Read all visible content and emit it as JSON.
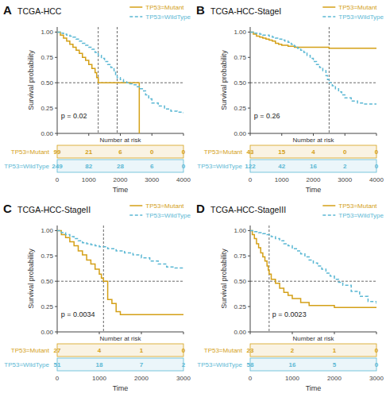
{
  "chart_data": [
    {
      "type": "step",
      "title": "TCGA-HCC",
      "annotations": [
        "A",
        "p = 0.02"
      ],
      "x_label": "Time",
      "y_label": "Survival probability",
      "xlim": [
        0,
        4000
      ],
      "xticks": [
        0,
        1000,
        2000,
        3000,
        4000
      ],
      "ylim": [
        0,
        1.05
      ],
      "yticks": [
        {
          "value": 0,
          "label": "0.00"
        },
        0.25,
        {
          "value": 0.5,
          "label": "0.50"
        },
        0.75,
        {
          "value": 1,
          "label": "1.00"
        }
      ],
      "tick_labels": "y",
      "grid": false,
      "legend": "upper right",
      "hlines": [
        0.5
      ],
      "vlines": [
        1300,
        1900
      ],
      "series": [
        {
          "name": "TP53=Mutant",
          "color": "#D4A017",
          "line_style": "solid",
          "x": [
            0,
            100,
            200,
            300,
            400,
            500,
            600,
            700,
            800,
            900,
            1000,
            1100,
            1200,
            1250,
            1300,
            1400,
            1500,
            1600,
            1700,
            1800,
            1900,
            2000,
            2100,
            2200,
            2300,
            2400,
            2500,
            2550,
            2600
          ],
          "values": [
            1.0,
            0.97,
            0.94,
            0.91,
            0.88,
            0.85,
            0.82,
            0.79,
            0.75,
            0.72,
            0.68,
            0.64,
            0.6,
            0.55,
            0.5,
            0.5,
            0.5,
            0.5,
            0.5,
            0.5,
            0.5,
            0.5,
            0.5,
            0.5,
            0.5,
            0.5,
            0.5,
            0.5,
            0.0
          ]
        },
        {
          "name": "TP53=WildType",
          "color": "#5BB8D4",
          "line_style": "dashed",
          "x": [
            0,
            100,
            200,
            300,
            400,
            500,
            600,
            700,
            800,
            900,
            1000,
            1100,
            1200,
            1300,
            1400,
            1500,
            1600,
            1700,
            1800,
            1850,
            1900,
            2000,
            2100,
            2200,
            2300,
            2400,
            2500,
            2600,
            2700,
            2800,
            2900,
            3000,
            3200,
            3400,
            3600,
            3800,
            4000
          ],
          "values": [
            1.0,
            0.99,
            0.98,
            0.97,
            0.96,
            0.95,
            0.93,
            0.91,
            0.89,
            0.87,
            0.85,
            0.83,
            0.8,
            0.77,
            0.74,
            0.71,
            0.68,
            0.65,
            0.62,
            0.58,
            0.55,
            0.53,
            0.51,
            0.5,
            0.49,
            0.48,
            0.46,
            0.44,
            0.42,
            0.38,
            0.34,
            0.3,
            0.27,
            0.24,
            0.22,
            0.21,
            0.2
          ]
        }
      ],
      "risk_table": {
        "title": "Number at risk",
        "times": [
          0,
          1000,
          2000,
          3000,
          4000
        ],
        "series": [
          {
            "name": "TP53=Mutant",
            "color": "#D4A017",
            "values": [
              99,
              21,
              6,
              0,
              0
            ]
          },
          {
            "name": "TP53=WildType",
            "color": "#5BB8D4",
            "values": [
              249,
              82,
              28,
              6,
              0
            ]
          }
        ]
      }
    },
    {
      "type": "step",
      "title": "TCGA-HCC-StageI",
      "annotations": [
        "B",
        "p = 0.26"
      ],
      "x_label": "Time",
      "y_label": "Survival probability",
      "xlim": [
        0,
        4000
      ],
      "xticks": [
        0,
        1000,
        2000,
        3000,
        4000
      ],
      "ylim": [
        0,
        1.05
      ],
      "yticks": [
        {
          "value": 0,
          "label": "0.00"
        },
        0.25,
        {
          "value": 0.5,
          "label": "0.50"
        },
        0.75,
        {
          "value": 1,
          "label": "1.00"
        }
      ],
      "tick_labels": "y",
      "grid": false,
      "legend": "upper right",
      "hlines": [
        0.5
      ],
      "vlines": [
        2500
      ],
      "series": [
        {
          "name": "TP53=Mutant",
          "color": "#D4A017",
          "line_style": "solid",
          "x": [
            0,
            100,
            200,
            300,
            400,
            500,
            600,
            700,
            800,
            900,
            1000,
            1200,
            1400,
            1600,
            1800,
            2000,
            2500,
            3000,
            3500,
            4000
          ],
          "values": [
            1.0,
            0.98,
            0.96,
            0.95,
            0.94,
            0.93,
            0.92,
            0.91,
            0.89,
            0.88,
            0.87,
            0.86,
            0.85,
            0.85,
            0.85,
            0.85,
            0.84,
            0.84,
            0.84,
            0.84
          ]
        },
        {
          "name": "TP53=WildType",
          "color": "#5BB8D4",
          "line_style": "dashed",
          "x": [
            0,
            100,
            200,
            300,
            400,
            500,
            600,
            700,
            800,
            900,
            1000,
            1100,
            1200,
            1300,
            1400,
            1500,
            1600,
            1700,
            1800,
            1900,
            2000,
            2100,
            2200,
            2300,
            2400,
            2450,
            2500,
            2600,
            2700,
            2800,
            2900,
            3000,
            3200,
            3400,
            3600,
            3800,
            4000
          ],
          "values": [
            1.0,
            0.99,
            0.99,
            0.98,
            0.97,
            0.97,
            0.96,
            0.95,
            0.94,
            0.93,
            0.92,
            0.91,
            0.9,
            0.88,
            0.86,
            0.84,
            0.82,
            0.8,
            0.77,
            0.74,
            0.71,
            0.68,
            0.65,
            0.62,
            0.57,
            0.53,
            0.5,
            0.47,
            0.44,
            0.41,
            0.38,
            0.35,
            0.32,
            0.3,
            0.29,
            0.29,
            0.29
          ]
        }
      ],
      "risk_table": {
        "title": "Number at risk",
        "times": [
          0,
          1000,
          2000,
          3000,
          4000
        ],
        "series": [
          {
            "name": "TP53=Mutant",
            "color": "#D4A017",
            "values": [
              43,
              15,
              4,
              0,
              0
            ]
          },
          {
            "name": "TP53=WildType",
            "color": "#5BB8D4",
            "values": [
              122,
              42,
              16,
              2,
              0
            ]
          }
        ]
      }
    },
    {
      "type": "step",
      "title": "TCGA-HCC-StageII",
      "annotations": [
        "C",
        "p = 0.0034"
      ],
      "x_label": "Time",
      "y_label": "Survival probability",
      "xlim": [
        0,
        3000
      ],
      "xticks": [
        0,
        1000,
        2000,
        3000
      ],
      "ylim": [
        0,
        1.05
      ],
      "yticks": [
        {
          "value": 0,
          "label": "0.00"
        },
        0.25,
        {
          "value": 0.5,
          "label": "0.50"
        },
        0.75,
        {
          "value": 1,
          "label": "1.00"
        }
      ],
      "tick_labels": "y",
      "grid": false,
      "legend": "upper right",
      "hlines": [
        0.5
      ],
      "vlines": [
        1100
      ],
      "series": [
        {
          "name": "TP53=Mutant",
          "color": "#D4A017",
          "line_style": "solid",
          "x": [
            0,
            100,
            200,
            300,
            400,
            500,
            600,
            700,
            800,
            900,
            1000,
            1050,
            1100,
            1200,
            1300,
            1400,
            1500,
            1600,
            1700,
            1800,
            1900,
            2000,
            2500,
            3000
          ],
          "values": [
            1.0,
            0.96,
            0.93,
            0.89,
            0.85,
            0.8,
            0.76,
            0.71,
            0.67,
            0.62,
            0.57,
            0.53,
            0.5,
            0.32,
            0.28,
            0.2,
            0.17,
            0.17,
            0.17,
            0.17,
            0.17,
            0.17,
            0.17,
            0.17
          ]
        },
        {
          "name": "TP53=WildType",
          "color": "#5BB8D4",
          "line_style": "dashed",
          "x": [
            0,
            100,
            200,
            300,
            400,
            500,
            600,
            700,
            800,
            900,
            1000,
            1200,
            1400,
            1600,
            1800,
            2000,
            2200,
            2400,
            2600,
            2800,
            3000
          ],
          "values": [
            1.0,
            0.98,
            0.96,
            0.94,
            0.92,
            0.9,
            0.88,
            0.87,
            0.86,
            0.85,
            0.84,
            0.82,
            0.8,
            0.78,
            0.76,
            0.73,
            0.7,
            0.67,
            0.64,
            0.63,
            0.63
          ]
        }
      ],
      "risk_table": {
        "title": "Number at risk",
        "times": [
          0,
          1000,
          2000,
          3000
        ],
        "series": [
          {
            "name": "TP53=Mutant",
            "color": "#D4A017",
            "values": [
              27,
              4,
              1,
              0
            ]
          },
          {
            "name": "TP53=WildType",
            "color": "#5BB8D4",
            "values": [
              51,
              18,
              7,
              2
            ]
          }
        ]
      }
    },
    {
      "type": "step",
      "title": "TCGA-HCC-StageIII",
      "annotations": [
        "D",
        "p = 0.0023"
      ],
      "x_label": "Time",
      "y_label": "Survival probability",
      "xlim": [
        0,
        3000
      ],
      "xticks": [
        0,
        1000,
        2000,
        3000
      ],
      "ylim": [
        0,
        1.05
      ],
      "yticks": [
        {
          "value": 0,
          "label": "0.00"
        },
        0.25,
        {
          "value": 0.5,
          "label": "0.50"
        },
        0.75,
        {
          "value": 1,
          "label": "1.00"
        }
      ],
      "tick_labels": "y",
      "grid": false,
      "legend": "upper right",
      "hlines": [
        0.5
      ],
      "vlines": [
        450
      ],
      "series": [
        {
          "name": "TP53=Mutant",
          "color": "#D4A017",
          "line_style": "solid",
          "x": [
            0,
            50,
            100,
            150,
            200,
            250,
            300,
            350,
            400,
            430,
            450,
            500,
            600,
            700,
            800,
            900,
            1000,
            1200,
            1400,
            1600,
            1800,
            2000,
            2200,
            2400,
            2600,
            2800,
            3000
          ],
          "values": [
            1.0,
            0.96,
            0.92,
            0.87,
            0.83,
            0.78,
            0.74,
            0.7,
            0.65,
            0.61,
            0.57,
            0.52,
            0.48,
            0.43,
            0.39,
            0.36,
            0.33,
            0.29,
            0.26,
            0.26,
            0.26,
            0.24,
            0.24,
            0.24,
            0.24,
            0.24,
            0.24
          ]
        },
        {
          "name": "TP53=WildType",
          "color": "#5BB8D4",
          "line_style": "dashed",
          "x": [
            0,
            100,
            200,
            300,
            400,
            500,
            600,
            700,
            800,
            900,
            1000,
            1100,
            1200,
            1300,
            1400,
            1500,
            1600,
            1700,
            1800,
            1900,
            2000,
            2100,
            2200,
            2400,
            2600,
            2800,
            3000
          ],
          "values": [
            1.0,
            0.99,
            0.98,
            0.97,
            0.96,
            0.94,
            0.92,
            0.9,
            0.87,
            0.85,
            0.82,
            0.8,
            0.77,
            0.74,
            0.71,
            0.68,
            0.65,
            0.62,
            0.58,
            0.55,
            0.52,
            0.49,
            0.46,
            0.4,
            0.35,
            0.3,
            0.26
          ]
        }
      ],
      "risk_table": {
        "title": "Number at risk",
        "times": [
          0,
          1000,
          2000,
          3000
        ],
        "series": [
          {
            "name": "TP53=Mutant",
            "color": "#D4A017",
            "values": [
              23,
              2,
              1,
              0
            ]
          },
          {
            "name": "TP53=WildType",
            "color": "#5BB8D4",
            "values": [
              58,
              16,
              5,
              0
            ]
          }
        ]
      }
    }
  ]
}
